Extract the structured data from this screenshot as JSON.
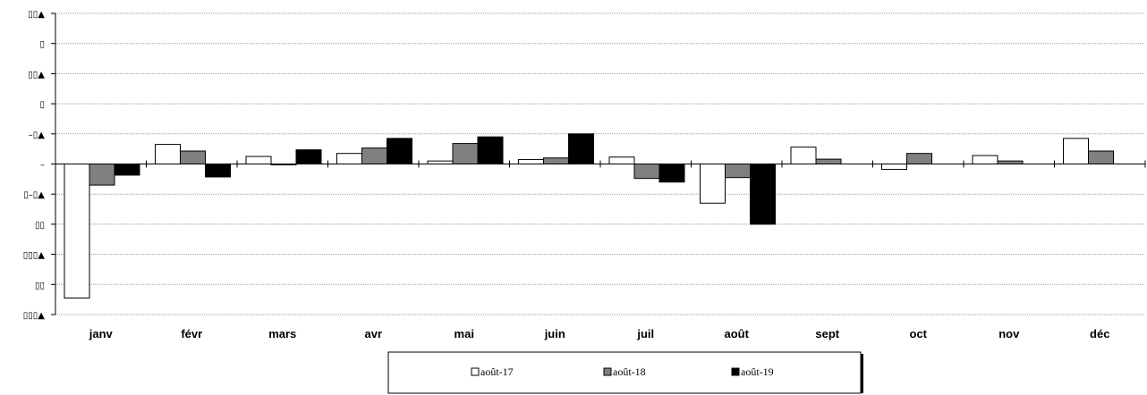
{
  "chart_data": {
    "type": "bar",
    "categories": [
      "janv",
      "févr",
      "mars",
      "avr",
      "mai",
      "juin",
      "juil",
      "août",
      "sept",
      "oct",
      "nov",
      "déc"
    ],
    "series": [
      {
        "name": "août-17",
        "color": "#ffffff",
        "values": [
          -44.5,
          6.5,
          2.5,
          3.5,
          1.0,
          1.5,
          2.3,
          -13.0,
          5.6,
          -1.8,
          2.8,
          8.5
        ]
      },
      {
        "name": "août-18",
        "color": "#808080",
        "values": [
          -7.0,
          4.3,
          -0.3,
          5.3,
          6.8,
          2.0,
          -4.8,
          -4.5,
          1.6,
          3.5,
          1.0,
          4.3
        ]
      },
      {
        "name": "août-19",
        "color": "#000000",
        "values": [
          -3.7,
          -4.3,
          4.7,
          8.5,
          9.0,
          10.0,
          -6.0,
          -20.0,
          null,
          null,
          null,
          null
        ]
      }
    ],
    "ylim": [
      -50,
      50
    ],
    "yticks": [
      50,
      40,
      30,
      20,
      10,
      0,
      -10,
      -20,
      -30,
      -40,
      -50
    ],
    "ytick_labels": [
      "▯▯▲",
      "▯",
      "▯▯▲",
      "▯",
      "–▯▲",
      "–",
      "▯–▯▲",
      "▯▯",
      "▯▯▯▲",
      "▯▯",
      "▯▯▯▲"
    ],
    "grid": true,
    "legend_position": "bottom"
  }
}
